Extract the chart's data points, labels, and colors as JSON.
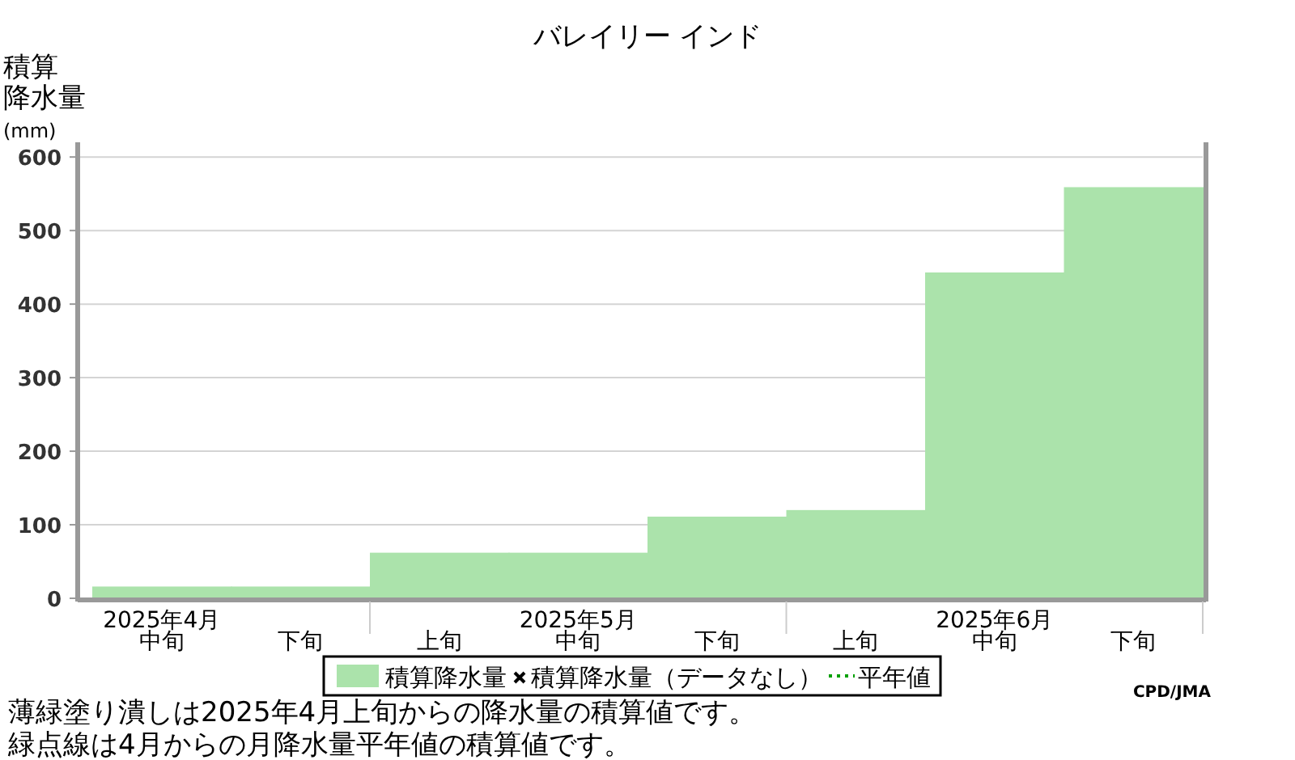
{
  "chart_data": {
    "type": "bar",
    "title": "バレイリー インド",
    "ylabel": "積算降水量(mm)",
    "categories": [
      "中旬",
      "下旬",
      "上旬",
      "中旬",
      "下旬",
      "上旬",
      "中旬",
      "下旬"
    ],
    "series": [
      {
        "name": "積算降水量",
        "color": "#abe3ab",
        "values": [
          16,
          16,
          62,
          62,
          111,
          120,
          443,
          559
        ]
      },
      {
        "name": "積算降水量（データなし）",
        "type": "scatter",
        "marker": "cross",
        "color": "#000000",
        "values": [
          null,
          null,
          null,
          null,
          null,
          null,
          null,
          null
        ]
      },
      {
        "name": "平年値",
        "type": "line",
        "line_style": "dotted",
        "color": "#00a000",
        "values": [
          null,
          null,
          null,
          null,
          null,
          null,
          null,
          null
        ]
      }
    ],
    "ylim": [
      0,
      620
    ],
    "yticks": [
      0,
      100,
      200,
      300,
      400,
      500,
      600
    ],
    "grid": "y",
    "legend": "bottom",
    "annotations": [
      "2025年4月",
      "2025年5月",
      "2025年6月",
      "CPD/JMA",
      "薄緑塗り潰しは2025年4月上旬からの降水量の積算値です。",
      "緑点線は4月からの月降水量平年値の積算値です。"
    ]
  }
}
